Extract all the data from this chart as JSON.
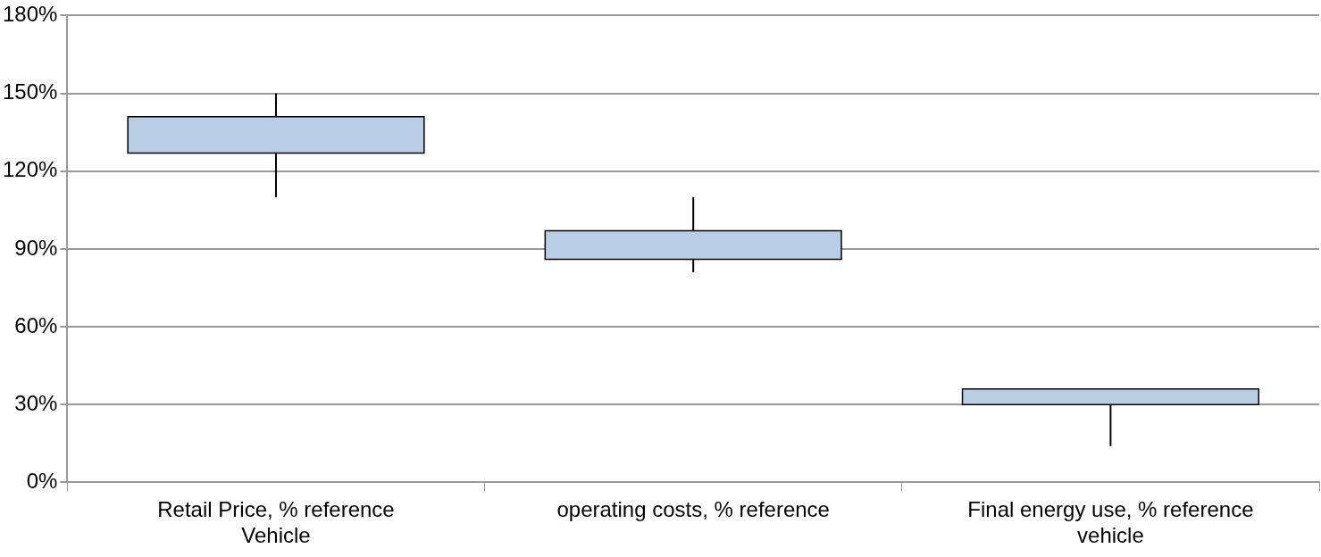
{
  "chart_data": {
    "type": "candlestick",
    "categories": [
      "Retail Price, % reference Vehicle",
      "operating costs, % reference",
      "Final energy use, % reference vehicle"
    ],
    "ohlc": [
      [
        127,
        150,
        110,
        141
      ],
      [
        86,
        110,
        81,
        97
      ],
      [
        30,
        36,
        14,
        36
      ]
    ],
    "color": "#b9cde5",
    "ylim": [
      0,
      180
    ],
    "yticks": [
      {
        "value": 0,
        "label": "0%"
      },
      {
        "value": 30,
        "label": "30%"
      },
      {
        "value": 60,
        "label": "60%"
      },
      {
        "value": 90,
        "label": "90%"
      },
      {
        "value": 120,
        "label": "120%"
      },
      {
        "value": 150,
        "label": "150%"
      },
      {
        "value": 180,
        "label": "180%"
      }
    ],
    "grid": "y"
  }
}
